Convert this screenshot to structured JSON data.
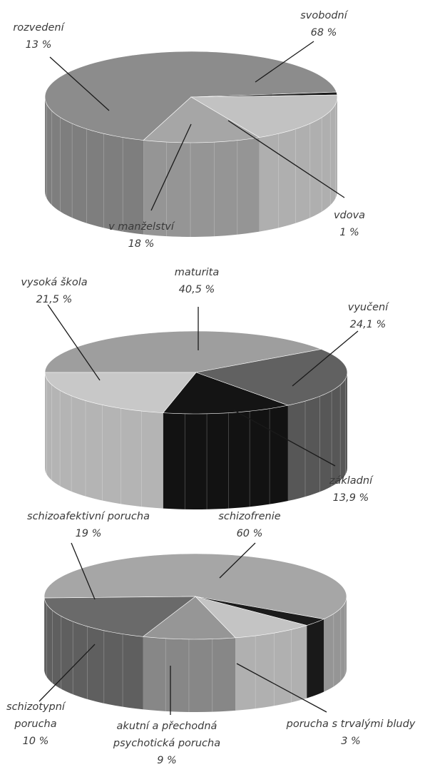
{
  "chart_data": [
    {
      "type": "pie",
      "title": "",
      "slices": [
        {
          "label": "svobodní",
          "value": 68,
          "value_label": "68 %",
          "color": "#8c8c8c"
        },
        {
          "label": "vdova",
          "value": 1,
          "value_label": "1 %",
          "color": "#1c1c1c"
        },
        {
          "label": "v manželství",
          "value": 18,
          "value_label": "18 %",
          "color": "#c2c2c2"
        },
        {
          "label": "rozvedení",
          "value": 13,
          "value_label": "13 %",
          "color": "#a6a6a6"
        }
      ]
    },
    {
      "type": "pie",
      "title": "",
      "slices": [
        {
          "label": "maturita",
          "value": 40.5,
          "value_label": "40,5 %",
          "color": "#9e9e9e"
        },
        {
          "label": "vyučení",
          "value": 24.1,
          "value_label": "24,1 %",
          "color": "#616161"
        },
        {
          "label": "základní",
          "value": 13.9,
          "value_label": "13,9 %",
          "color": "#141414"
        },
        {
          "label": "vysoká škola",
          "value": 21.5,
          "value_label": "21,5 %",
          "color": "#c8c8c8"
        }
      ]
    },
    {
      "type": "pie",
      "title": "",
      "slices": [
        {
          "label": "schizofrenie",
          "value": 60,
          "value_label": "60 %",
          "color": "#a6a6a6"
        },
        {
          "label": "porucha s trvalými bludy",
          "value": 3,
          "value_label": "3 %",
          "color": "#1c1c1c"
        },
        {
          "label": "akutní a přechodná psychotická porucha",
          "value": 9,
          "value_label": "9 %",
          "color": "#c4c4c4"
        },
        {
          "label": "schizotypní porucha",
          "value": 10,
          "value_label": "10 %",
          "color": "#969696"
        },
        {
          "label": "schizoafektivní porucha",
          "value": 19,
          "value_label": "19 %",
          "color": "#6a6a6a"
        }
      ]
    }
  ],
  "labels": {
    "chart1": {
      "svobodni": "svobodní",
      "svobodni_pct": "68 %",
      "rozvedeni": "rozvedení",
      "rozvedeni_pct": "13 %",
      "manzelstvi": "v manželství",
      "manzelstvi_pct": "18 %",
      "vdova": "vdova",
      "vdova_pct": "1 %"
    },
    "chart2": {
      "maturita": "maturita",
      "maturita_pct": "40,5 %",
      "vysoka": "vysoká škola",
      "vysoka_pct": "21,5 %",
      "vyuceni": "vyučení",
      "vyuceni_pct": "24,1 %",
      "zakladni": "základní",
      "zakladni_pct": "13,9 %"
    },
    "chart3": {
      "schizoafektivni": "schizoafektivní porucha",
      "schizoafektivni_pct": "19 %",
      "schizofrenie": "schizofrenie",
      "schizofrenie_pct": "60 %",
      "schizotypni_1": "schizotypní",
      "schizotypni_2": "porucha",
      "schizotypni_pct": "10 %",
      "akutni_1": "akutní a přechodná",
      "akutni_2": "psychotická porucha",
      "akutni_pct": "9 %",
      "bludy": "porucha s trvalými bludy",
      "bludy_pct": "3 %"
    }
  }
}
